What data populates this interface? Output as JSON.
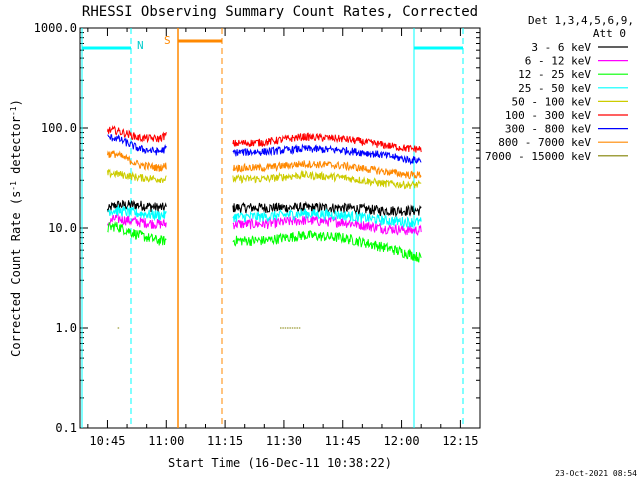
{
  "chart_data": {
    "type": "line",
    "title": "RHESSI Observing Summary Count Rates, Corrected",
    "xlabel": "Start Time (16-Dec-11 10:38:22)",
    "ylabel": "Corrected Count Rate (s",
    "ylabel_sup": "-1",
    "ylabel_mid": " detector",
    "ylabel_sup2": "-1",
    "ylabel_end": ")",
    "y_scale": "log",
    "ylim": [
      0.1,
      1000
    ],
    "y_ticks": [
      {
        "value": 0.1,
        "label": "0.1"
      },
      {
        "value": 1,
        "label": "1.0"
      },
      {
        "value": 10,
        "label": "10.0"
      },
      {
        "value": 100,
        "label": "100.0"
      },
      {
        "value": 1000,
        "label": "1000.0"
      }
    ],
    "xlim_minutes": [
      0,
      102
    ],
    "x_ticks": [
      {
        "value": 0,
        "label": "10:45"
      },
      {
        "value": 15,
        "label": "11:00"
      },
      {
        "value": 30,
        "label": "11:15"
      },
      {
        "value": 45,
        "label": "11:30"
      },
      {
        "value": 60,
        "label": "11:45"
      },
      {
        "value": 75,
        "label": "12:00"
      },
      {
        "value": 90,
        "label": "12:15"
      }
    ],
    "legend": {
      "placement": "right",
      "header1": "Det 1,3,4,5,6,9,",
      "header2": "Att 0"
    },
    "series": [
      {
        "name": "3 - 6 keV",
        "color": "#000000",
        "seg1": [
          [
            0,
            15
          ],
          [
            2,
            17
          ],
          [
            8,
            17
          ],
          [
            13,
            16
          ],
          [
            15,
            16
          ]
        ],
        "seg2": [
          [
            32,
            16
          ],
          [
            40,
            16
          ],
          [
            50,
            16
          ],
          [
            60,
            16
          ],
          [
            70,
            15
          ],
          [
            77,
            15
          ],
          [
            80,
            15
          ]
        ]
      },
      {
        "name": "6 - 12 keV",
        "color": "#ff00ff",
        "seg1": [
          [
            0,
            11
          ],
          [
            2,
            12.5
          ],
          [
            8,
            11.5
          ],
          [
            13,
            11
          ],
          [
            15,
            11
          ]
        ],
        "seg2": [
          [
            32,
            11
          ],
          [
            40,
            11
          ],
          [
            50,
            12
          ],
          [
            60,
            11.5
          ],
          [
            70,
            10
          ],
          [
            77,
            9.5
          ],
          [
            80,
            9.5
          ]
        ]
      },
      {
        "name": "12 - 25 keV",
        "color": "#00ff00",
        "seg1": [
          [
            0,
            10
          ],
          [
            2,
            10.5
          ],
          [
            8,
            8.5
          ],
          [
            13,
            7.5
          ],
          [
            15,
            7.5
          ]
        ],
        "seg2": [
          [
            32,
            7.5
          ],
          [
            40,
            7.5
          ],
          [
            50,
            8.5
          ],
          [
            60,
            8
          ],
          [
            70,
            6.5
          ],
          [
            77,
            5.5
          ],
          [
            80,
            5
          ]
        ]
      },
      {
        "name": "25 - 50 keV",
        "color": "#00ffff",
        "seg1": [
          [
            0,
            15
          ],
          [
            2,
            15
          ],
          [
            8,
            14
          ],
          [
            13,
            13.5
          ],
          [
            15,
            13.5
          ]
        ],
        "seg2": [
          [
            32,
            13
          ],
          [
            40,
            13
          ],
          [
            50,
            14
          ],
          [
            60,
            13.5
          ],
          [
            70,
            12
          ],
          [
            77,
            11.5
          ],
          [
            80,
            11.5
          ]
        ]
      },
      {
        "name": "50 - 100 keV",
        "color": "#cccc00",
        "seg1": [
          [
            0,
            35
          ],
          [
            2,
            35
          ],
          [
            8,
            32
          ],
          [
            13,
            31
          ],
          [
            15,
            31
          ]
        ],
        "seg2": [
          [
            32,
            31
          ],
          [
            40,
            31
          ],
          [
            50,
            34
          ],
          [
            60,
            32
          ],
          [
            70,
            28
          ],
          [
            77,
            27
          ],
          [
            80,
            27
          ]
        ]
      },
      {
        "name": "100 - 300 keV",
        "color": "#ff0000",
        "seg1": [
          [
            0,
            95
          ],
          [
            2,
            95
          ],
          [
            8,
            80
          ],
          [
            13,
            78
          ],
          [
            15,
            85
          ]
        ],
        "seg2": [
          [
            32,
            70
          ],
          [
            40,
            72
          ],
          [
            50,
            82
          ],
          [
            60,
            78
          ],
          [
            70,
            68
          ],
          [
            77,
            62
          ],
          [
            80,
            62
          ]
        ]
      },
      {
        "name": "300 - 800 keV",
        "color": "#0000ff",
        "seg1": [
          [
            0,
            80
          ],
          [
            2,
            80
          ],
          [
            8,
            62
          ],
          [
            13,
            58
          ],
          [
            15,
            62
          ]
        ],
        "seg2": [
          [
            32,
            57
          ],
          [
            40,
            58
          ],
          [
            50,
            62
          ],
          [
            60,
            60
          ],
          [
            70,
            54
          ],
          [
            77,
            48
          ],
          [
            80,
            48
          ]
        ]
      },
      {
        "name": "800 - 7000 keV",
        "color": "#ff8800",
        "seg1": [
          [
            0,
            55
          ],
          [
            2,
            55
          ],
          [
            8,
            43
          ],
          [
            13,
            40
          ],
          [
            15,
            42
          ]
        ],
        "seg2": [
          [
            32,
            40
          ],
          [
            40,
            40
          ],
          [
            50,
            44
          ],
          [
            60,
            42
          ],
          [
            70,
            37
          ],
          [
            77,
            34
          ],
          [
            80,
            34
          ]
        ]
      },
      {
        "name": "7000 - 15000 keV",
        "color": "#808000",
        "seg1": [
          [
            2,
            1
          ],
          [
            5,
            1
          ]
        ],
        "seg2": [
          [
            44,
            1
          ],
          [
            50,
            1
          ]
        ]
      }
    ],
    "annotations": {
      "night_label": "N",
      "saa_label": "S"
    },
    "footer_timestamp": "23-Oct-2021 08:54"
  }
}
